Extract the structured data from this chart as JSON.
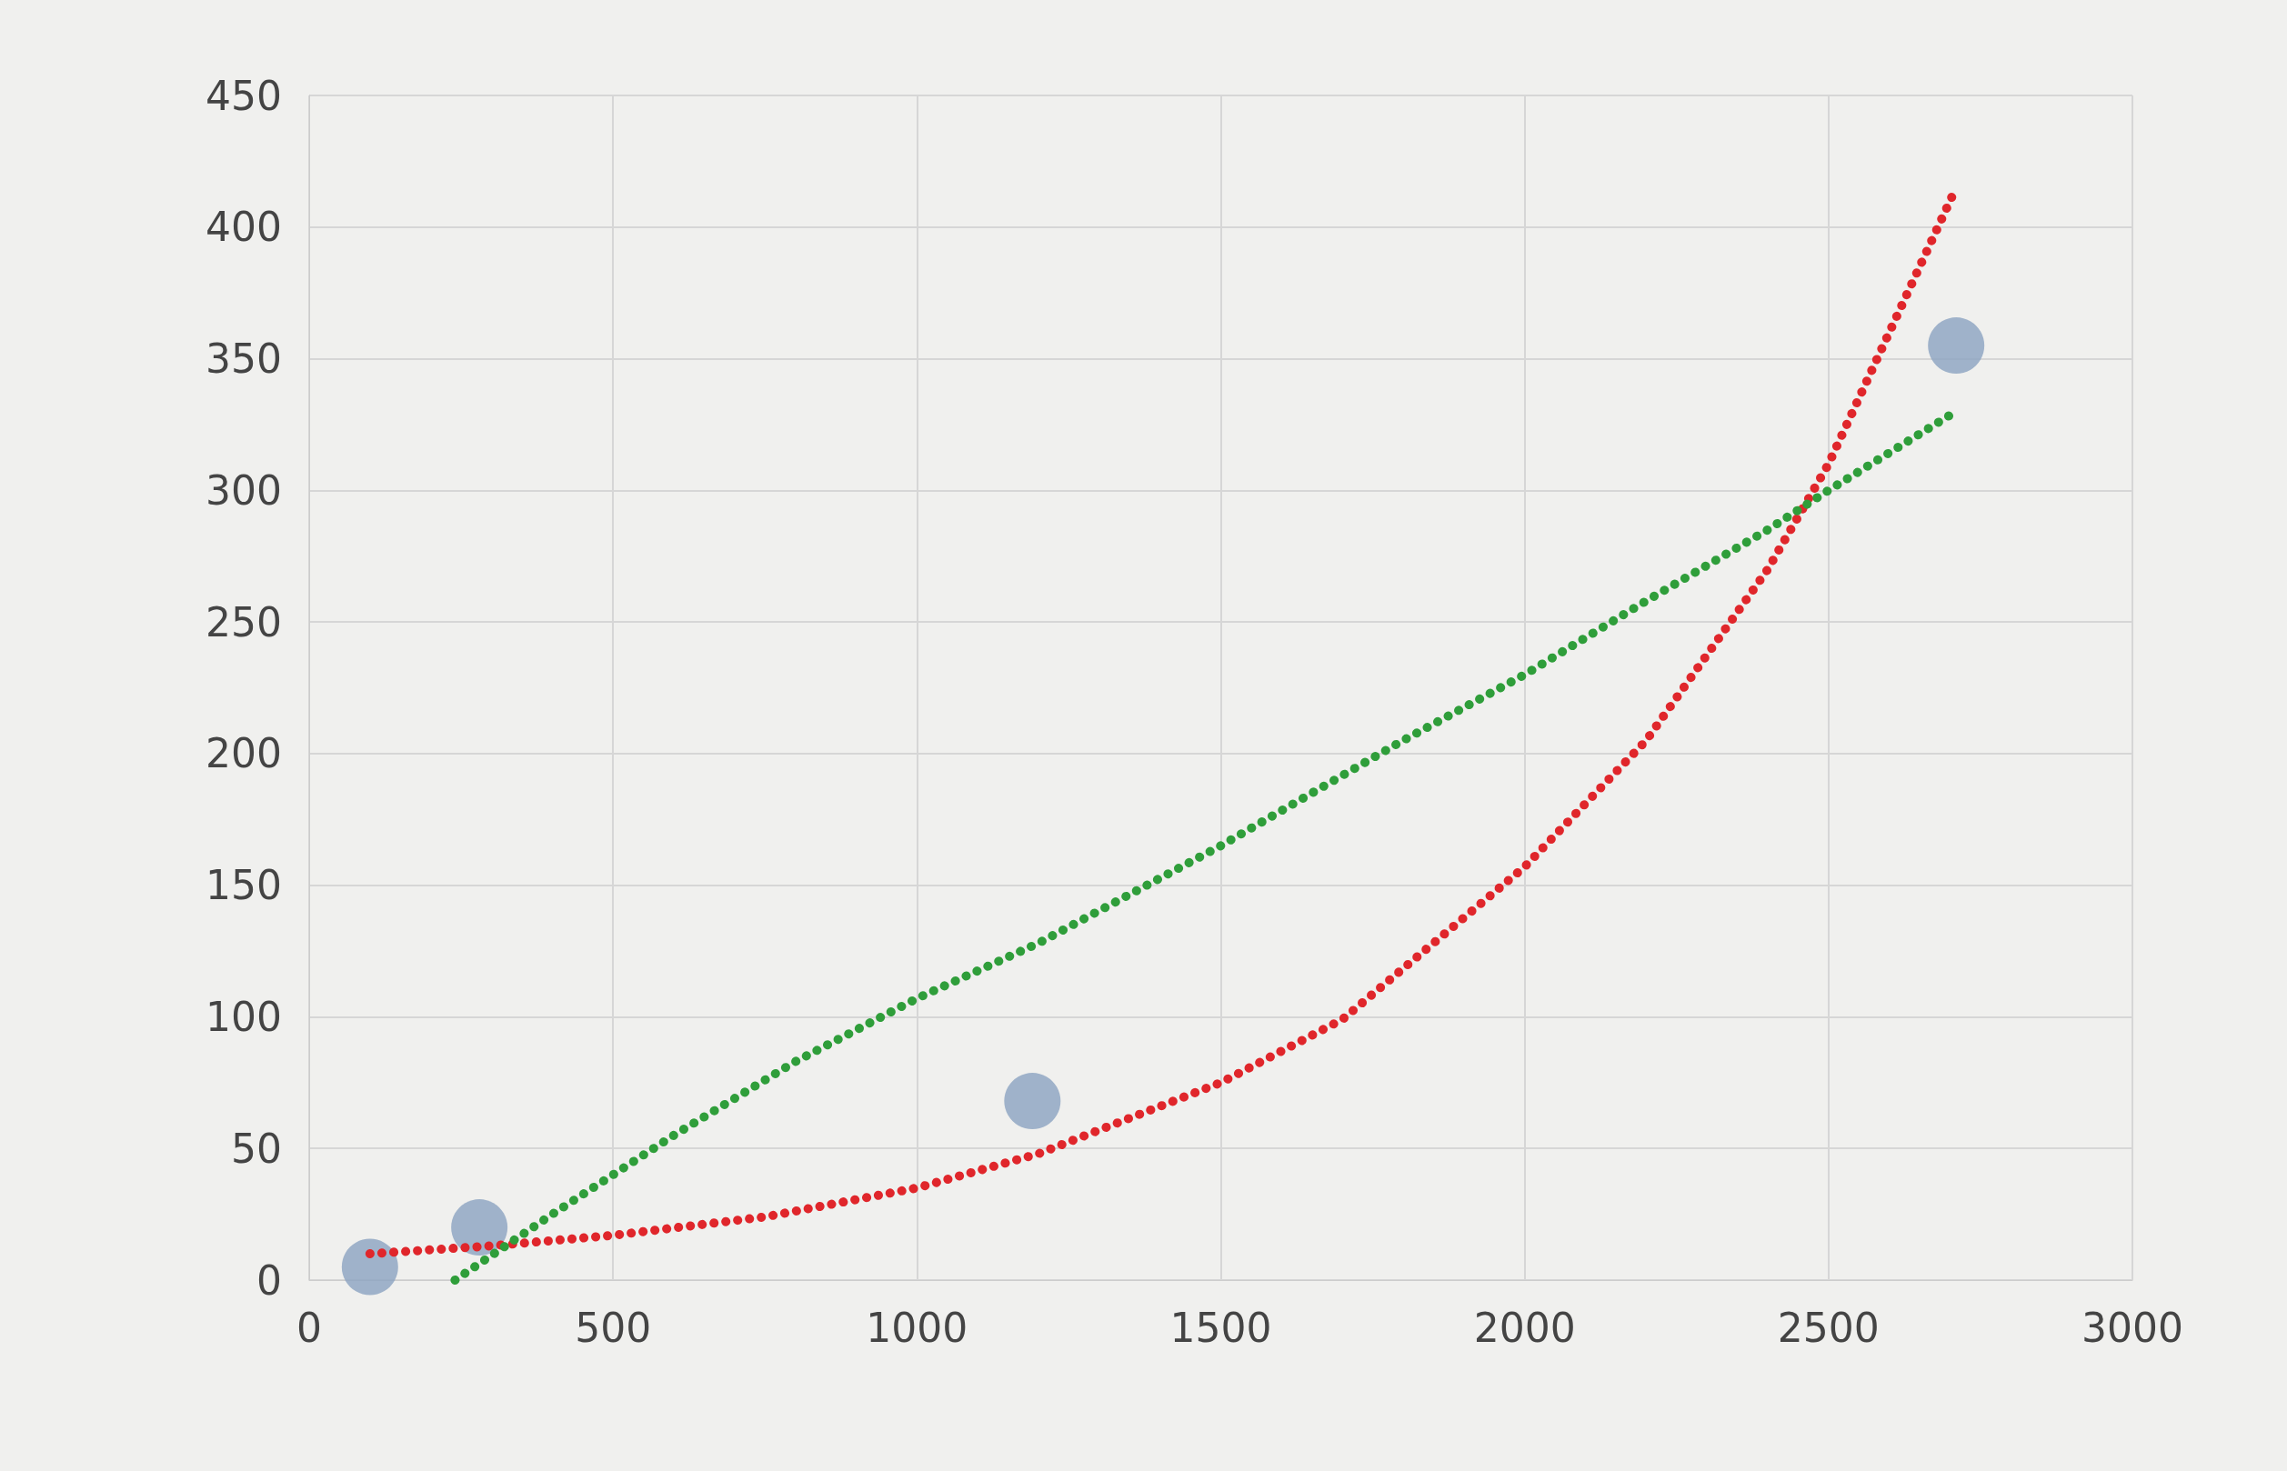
{
  "chart_data": {
    "type": "scatter",
    "xlim": [
      0,
      3000
    ],
    "xticks": [
      0,
      500,
      1000,
      1500,
      2000,
      2500,
      3000
    ],
    "ylim": [
      0,
      450
    ],
    "yticks": [
      0,
      50,
      100,
      150,
      200,
      250,
      300,
      350,
      400,
      450
    ],
    "grid": true,
    "series": [
      {
        "marker": "circle",
        "color": "#8ba3c0",
        "x": [
          100,
          280,
          1190,
          2710
        ],
        "values": [
          5,
          20,
          68,
          355
        ]
      },
      {
        "type": "line",
        "marker": "none",
        "line_style": "dotted",
        "color": "#e0262b",
        "x": [
          100,
          300,
          500,
          750,
          1000,
          1200,
          1500,
          1700,
          2000,
          2200,
          2400,
          2500,
          2600,
          2710
        ],
        "values": [
          10,
          13,
          17,
          24,
          35,
          48,
          75,
          99,
          157,
          205,
          270,
          310,
          360,
          415
        ]
      },
      {
        "type": "line",
        "marker": "none",
        "line_style": "dotted",
        "color": "#2f9e3a",
        "x": [
          240,
          400,
          600,
          800,
          1000,
          1200,
          1500,
          1800,
          2000,
          2200,
          2400,
          2500,
          2710
        ],
        "values": [
          0,
          25,
          55,
          83,
          107,
          128,
          165,
          205,
          230,
          258,
          285,
          300,
          330
        ]
      }
    ]
  }
}
